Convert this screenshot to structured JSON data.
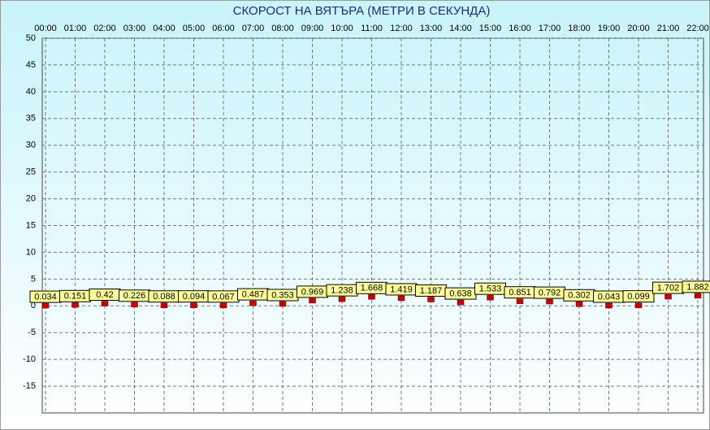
{
  "chart_data": {
    "type": "point",
    "title": "СКОРОСТ НА ВЯТЪРА (МЕТРИ В СЕКУНДА)",
    "categories": [
      "00:00",
      "01:00",
      "02:00",
      "03:00",
      "04:00",
      "05:00",
      "06:00",
      "07:00",
      "08:00",
      "09:00",
      "10:00",
      "11:00",
      "12:00",
      "13:00",
      "14:00",
      "15:00",
      "16:00",
      "17:00",
      "18:00",
      "19:00",
      "20:00",
      "21:00",
      "22:00"
    ],
    "values": [
      0.034,
      0.151,
      0.42,
      0.226,
      0.088,
      0.094,
      0.067,
      0.487,
      0.353,
      0.969,
      1.238,
      1.668,
      1.419,
      1.187,
      0.638,
      1.533,
      0.851,
      0.792,
      0.302,
      0.043,
      0.099,
      1.702,
      1.882
    ],
    "color": "#cc0000",
    "label_color": "#ffff99",
    "ylim": [
      -20,
      50
    ],
    "yticks": [
      50,
      45,
      40,
      35,
      30,
      25,
      20,
      15,
      10,
      5,
      0,
      -5,
      -10,
      -15
    ],
    "grid": true
  }
}
